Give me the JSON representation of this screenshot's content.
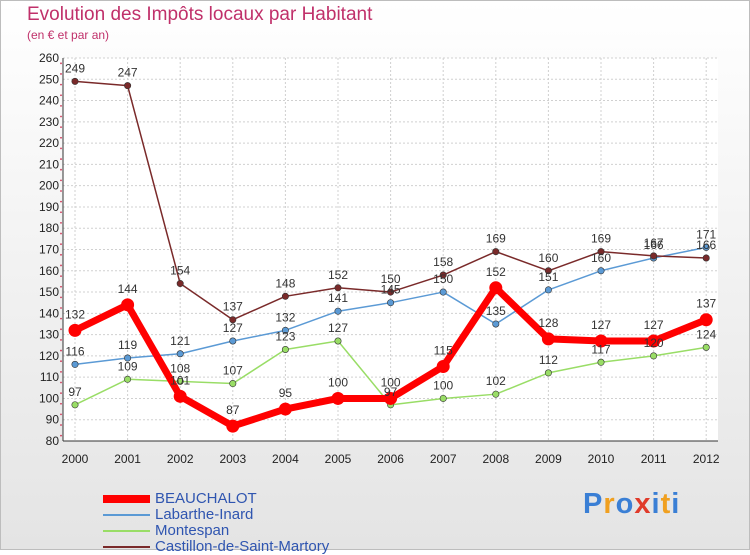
{
  "chart_data": {
    "type": "line",
    "title": "Evolution des Impôts locaux par Habitant",
    "subtitle": "(en € et par an)",
    "xlabel": "",
    "ylabel": "",
    "categories": [
      "2000",
      "2001",
      "2002",
      "2003",
      "2004",
      "2005",
      "2006",
      "2007",
      "2008",
      "2009",
      "2010",
      "2011",
      "2012"
    ],
    "ylim": [
      80,
      260
    ],
    "yticks": [
      80,
      90,
      100,
      110,
      120,
      130,
      140,
      150,
      160,
      170,
      180,
      190,
      200,
      210,
      220,
      230,
      240,
      250,
      260
    ],
    "grid": true,
    "legend_position": "bottom-left",
    "series": [
      {
        "name": "BEAUCHALOT",
        "color": "#ff0000",
        "values": [
          132,
          144,
          101,
          87,
          95,
          100,
          100,
          115,
          152,
          128,
          127,
          127,
          137
        ],
        "labels": [
          "132",
          "144",
          "101",
          "87",
          "95",
          "100",
          "100",
          "115",
          "152",
          "128",
          "127",
          "127",
          "137"
        ]
      },
      {
        "name": "Labarthe-Inard",
        "color": "#5b9ad5",
        "values": [
          116,
          119,
          121,
          127,
          132,
          141,
          145,
          150,
          135,
          151,
          160,
          166,
          171
        ],
        "labels": [
          "116",
          "119",
          "121",
          "127",
          "132",
          "141",
          "145",
          "150",
          "135",
          "151",
          "160",
          "166",
          "171"
        ]
      },
      {
        "name": "Montespan",
        "color": "#99dd66",
        "values": [
          97,
          109,
          108,
          107,
          123,
          127,
          97,
          100,
          102,
          112,
          117,
          120,
          124
        ],
        "labels": [
          "97",
          "109",
          "108",
          "107",
          "123",
          "127",
          "97",
          "100",
          "102",
          "112",
          "117",
          "120",
          "124"
        ]
      },
      {
        "name": "Castillon-de-Saint-Martory",
        "color": "#7a2a2a",
        "values": [
          249,
          247,
          154,
          137,
          148,
          152,
          150,
          158,
          169,
          160,
          169,
          167,
          166
        ],
        "labels": [
          "249",
          "247",
          "154",
          "137",
          "148",
          "152",
          "150",
          "158",
          "169",
          "160",
          "169",
          "167",
          "166"
        ]
      }
    ]
  },
  "logo": {
    "letters": [
      "P",
      "r",
      "o",
      "x",
      "i",
      "t",
      "i"
    ],
    "colors": [
      "#3a7fd5",
      "#f0a020",
      "#3a7fd5",
      "#e03a2a",
      "#3a7fd5",
      "#f0a020",
      "#3a7fd5"
    ]
  }
}
